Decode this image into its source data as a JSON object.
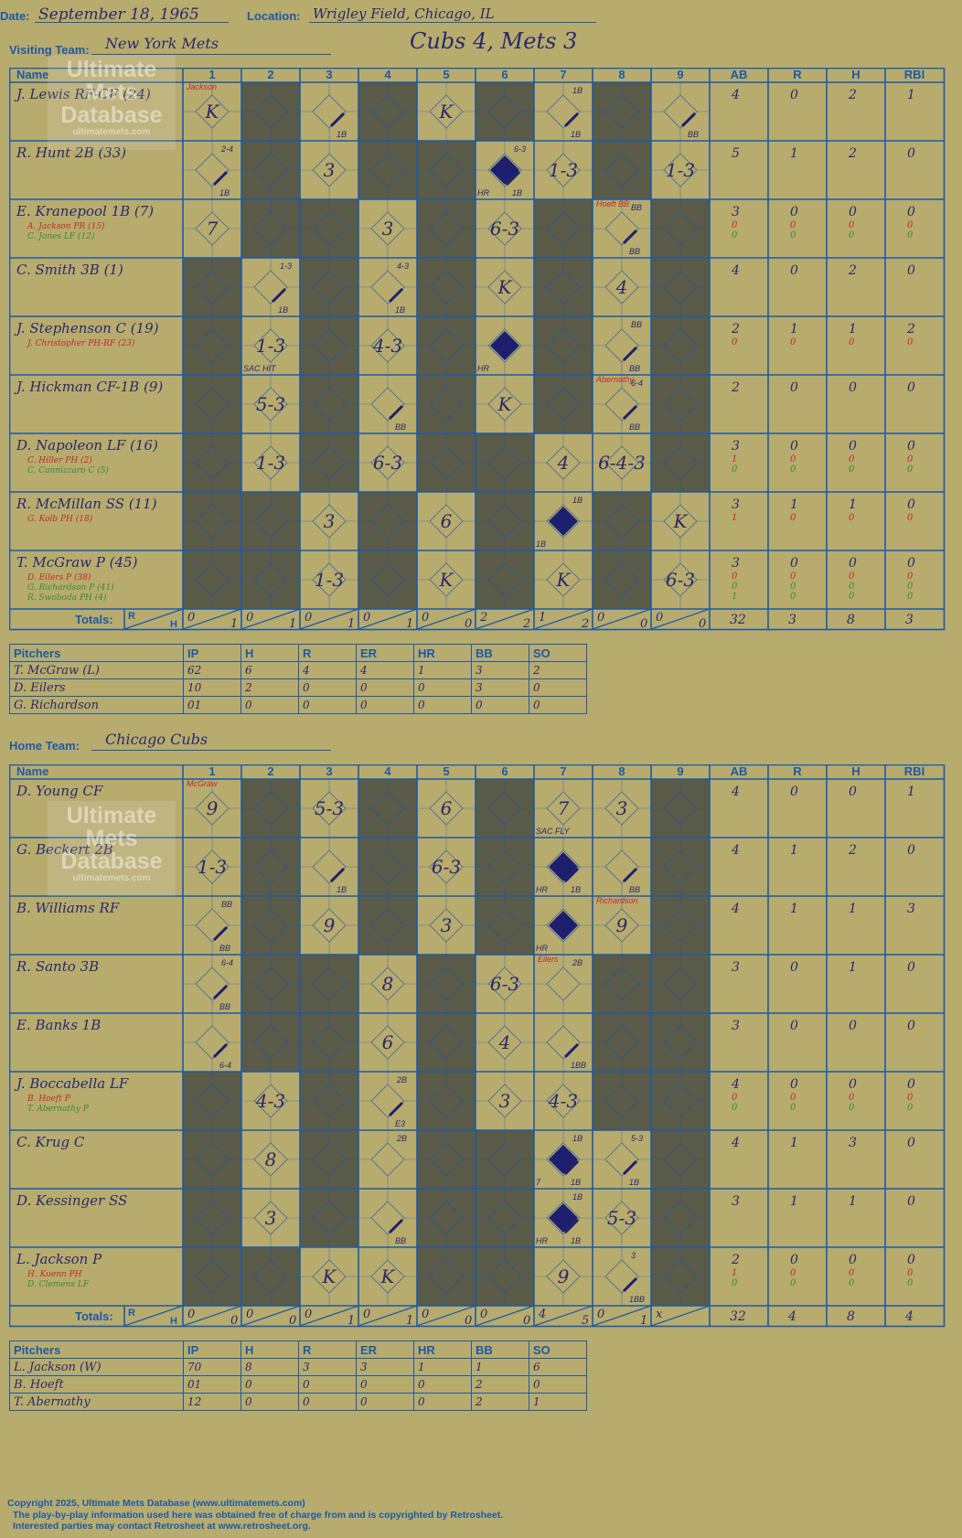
{
  "header": {
    "date_label": "Date:",
    "date": "September 18, 1965",
    "location_label": "Location:",
    "location": "Wrigley Field, Chicago, IL",
    "result": "Cubs 4, Mets 3"
  },
  "columns": {
    "name": "Name",
    "innings": [
      "1",
      "2",
      "3",
      "4",
      "5",
      "6",
      "7",
      "8",
      "9"
    ],
    "stats": [
      "AB",
      "R",
      "H",
      "RBI"
    ],
    "totals_label": "Totals:",
    "r_label": "R",
    "h_label": "H"
  },
  "watermark": {
    "line1": "Ultimate",
    "line2": "Mets",
    "line3": "Database",
    "url": "ultimatemets.com"
  },
  "visitors": {
    "team_label": "Visiting Team:",
    "team": "New York Mets",
    "batters": [
      {
        "name": "J. Lewis RF-CF (24)",
        "subs": [],
        "stats": [
          [
            "4",
            "0",
            "2",
            "1"
          ]
        ],
        "cells": [
          {
            "c": 1,
            "t": "K",
            "note": "Jackson"
          },
          {
            "c": 3,
            "t": "",
            "base": "1B"
          },
          {
            "c": 5,
            "t": "K"
          },
          {
            "c": 7,
            "t": "",
            "base": "1B",
            "top": "1B"
          },
          {
            "c": 9,
            "t": "",
            "base": "BB"
          }
        ]
      },
      {
        "name": "R. Hunt 2B (33)",
        "subs": [],
        "stats": [
          [
            "5",
            "1",
            "2",
            "0"
          ]
        ],
        "cells": [
          {
            "c": 1,
            "t": "",
            "base": "1B",
            "top": "2-4"
          },
          {
            "c": 3,
            "t": "3"
          },
          {
            "c": 6,
            "t": "",
            "run": true,
            "base": "1B",
            "top": "6-3",
            "bl": "HR"
          },
          {
            "c": 7,
            "t": "1-3"
          },
          {
            "c": 9,
            "t": "1-3"
          }
        ]
      },
      {
        "name": "E. Kranepool 1B (7)",
        "subs": [
          "A. Jackson PR (15)",
          "C. Jones LF (12)"
        ],
        "stats": [
          [
            "3",
            "0",
            "0",
            "0"
          ],
          [
            "0",
            "0",
            "0",
            "0"
          ],
          [
            "0",
            "0",
            "0",
            "0"
          ]
        ],
        "cells": [
          {
            "c": 1,
            "t": "7"
          },
          {
            "c": 4,
            "t": "3"
          },
          {
            "c": 6,
            "t": "6-3"
          },
          {
            "c": 8,
            "t": "",
            "base": "BB",
            "top": "BB",
            "note": "Hoeft BB"
          }
        ]
      },
      {
        "name": "C. Smith 3B (1)",
        "subs": [],
        "stats": [
          [
            "4",
            "0",
            "2",
            "0"
          ]
        ],
        "cells": [
          {
            "c": 2,
            "t": "",
            "base": "1B",
            "top": "1-3"
          },
          {
            "c": 4,
            "t": "",
            "base": "1B",
            "top": "4-3"
          },
          {
            "c": 6,
            "t": "K"
          },
          {
            "c": 8,
            "t": "4"
          }
        ]
      },
      {
        "name": "J. Stephenson C (19)",
        "subs": [
          "J. Christopher PH-RF (23)"
        ],
        "stats": [
          [
            "2",
            "1",
            "1",
            "2"
          ],
          [
            "0",
            "0",
            "0",
            "0"
          ]
        ],
        "cells": [
          {
            "c": 2,
            "t": "1-3",
            "bl": "SAC HIT"
          },
          {
            "c": 4,
            "t": "4-3"
          },
          {
            "c": 6,
            "t": "",
            "run": true,
            "bl": "HR"
          },
          {
            "c": 8,
            "t": "",
            "base": "BB",
            "top": "BB"
          }
        ]
      },
      {
        "name": "J. Hickman CF-1B (9)",
        "subs": [],
        "stats": [
          [
            "2",
            "0",
            "0",
            "0"
          ]
        ],
        "cells": [
          {
            "c": 2,
            "t": "5-3"
          },
          {
            "c": 4,
            "t": "",
            "base": "BB"
          },
          {
            "c": 6,
            "t": "K"
          },
          {
            "c": 8,
            "t": "",
            "base": "BB",
            "top": "6-4",
            "note": "Abernathy"
          }
        ]
      },
      {
        "name": "D. Napoleon LF (16)",
        "subs": [
          "C. Hiller PH (2)",
          "C. Cannizzaro C (5)"
        ],
        "stats": [
          [
            "3",
            "0",
            "0",
            "0"
          ],
          [
            "1",
            "0",
            "0",
            "0"
          ],
          [
            "0",
            "0",
            "0",
            "0"
          ]
        ],
        "cells": [
          {
            "c": 2,
            "t": "1-3"
          },
          {
            "c": 4,
            "t": "6-3"
          },
          {
            "c": 7,
            "t": "4"
          },
          {
            "c": 8,
            "t": "6-4-3"
          }
        ]
      },
      {
        "name": "R. McMillan SS (11)",
        "subs": [
          "G. Kolb PH (18)"
        ],
        "stats": [
          [
            "3",
            "1",
            "1",
            "0"
          ],
          [
            "1",
            "0",
            "0",
            "0"
          ]
        ],
        "cells": [
          {
            "c": 3,
            "t": "3"
          },
          {
            "c": 5,
            "t": "6"
          },
          {
            "c": 7,
            "t": "",
            "run": true,
            "top": "1B",
            "bl": "1B"
          },
          {
            "c": 9,
            "t": "K"
          }
        ]
      },
      {
        "name": "T. McGraw P (45)",
        "subs": [
          "D. Eilers P (38)",
          "G. Richardson P (41)",
          "R. Swoboda PH (4)"
        ],
        "stats": [
          [
            "3",
            "0",
            "0",
            "0"
          ],
          [
            "0",
            "0",
            "0",
            "0"
          ],
          [
            "0",
            "0",
            "0",
            "0"
          ],
          [
            "1",
            "0",
            "0",
            "0"
          ]
        ],
        "cells": [
          {
            "c": 3,
            "t": "1-3"
          },
          {
            "c": 5,
            "t": "K"
          },
          {
            "c": 7,
            "t": "K"
          },
          {
            "c": 9,
            "t": "6-3"
          }
        ]
      }
    ],
    "shade": [
      [
        2,
        4,
        6,
        8
      ],
      [
        2,
        4,
        5,
        8
      ],
      [
        2,
        3,
        5,
        7,
        9
      ],
      [
        1,
        3,
        5,
        7,
        9
      ],
      [
        1,
        3,
        5,
        7,
        9
      ],
      [
        1,
        3,
        5,
        7,
        9
      ],
      [
        1,
        3,
        5,
        6,
        9
      ],
      [
        1,
        2,
        4,
        6,
        8
      ],
      [
        1,
        2,
        4,
        6,
        8
      ]
    ],
    "totals_r": [
      "0",
      "0",
      "0",
      "0",
      "0",
      "2",
      "1",
      "0",
      "0"
    ],
    "totals_h": [
      "1",
      "1",
      "1",
      "1",
      "0",
      "2",
      "2",
      "0",
      "0"
    ],
    "totals_stats": [
      "32",
      "3",
      "8",
      "3"
    ],
    "pitchers": {
      "header": [
        "Pitchers",
        "IP",
        "H",
        "R",
        "ER",
        "HR",
        "BB",
        "SO"
      ],
      "rows": [
        [
          "T. McGraw (L)",
          "62",
          "6",
          "4",
          "4",
          "1",
          "3",
          "2"
        ],
        [
          "D. Eilers",
          "10",
          "2",
          "0",
          "0",
          "0",
          "3",
          "0"
        ],
        [
          "G. Richardson",
          "01",
          "0",
          "0",
          "0",
          "0",
          "0",
          "0"
        ]
      ]
    }
  },
  "home": {
    "team_label": "Home Team:",
    "team": "Chicago Cubs",
    "batters": [
      {
        "name": "D. Young CF",
        "subs": [],
        "stats": [
          [
            "4",
            "0",
            "0",
            "1"
          ]
        ],
        "cells": [
          {
            "c": 1,
            "t": "9",
            "note": "McGraw"
          },
          {
            "c": 3,
            "t": "5-3"
          },
          {
            "c": 5,
            "t": "6"
          },
          {
            "c": 7,
            "t": "7",
            "bl": "SAC FLY"
          },
          {
            "c": 8,
            "t": "3"
          }
        ]
      },
      {
        "name": "G. Beckert 2B",
        "subs": [],
        "stats": [
          [
            "4",
            "1",
            "2",
            "0"
          ]
        ],
        "cells": [
          {
            "c": 1,
            "t": "1-3"
          },
          {
            "c": 3,
            "t": "",
            "base": "1B"
          },
          {
            "c": 5,
            "t": "6-3"
          },
          {
            "c": 7,
            "t": "",
            "run": true,
            "base": "1B",
            "bl": "HR"
          },
          {
            "c": 8,
            "t": "",
            "base": "BB"
          }
        ]
      },
      {
        "name": "B. Williams RF",
        "subs": [],
        "stats": [
          [
            "4",
            "1",
            "1",
            "3"
          ]
        ],
        "cells": [
          {
            "c": 1,
            "t": "",
            "base": "BB",
            "top": "BB"
          },
          {
            "c": 3,
            "t": "9"
          },
          {
            "c": 5,
            "t": "3"
          },
          {
            "c": 7,
            "t": "",
            "run": true,
            "bl": "HR"
          },
          {
            "c": 8,
            "t": "9",
            "note": "Richardson"
          }
        ]
      },
      {
        "name": "R. Santo 3B",
        "subs": [],
        "stats": [
          [
            "3",
            "0",
            "1",
            "0"
          ]
        ],
        "cells": [
          {
            "c": 1,
            "t": "",
            "base": "BB",
            "top": "6-4"
          },
          {
            "c": 4,
            "t": "8"
          },
          {
            "c": 6,
            "t": "6-3"
          },
          {
            "c": 7,
            "t": "",
            "top": "2B",
            "note": "Eilers"
          }
        ]
      },
      {
        "name": "E. Banks 1B",
        "subs": [],
        "stats": [
          [
            "3",
            "0",
            "0",
            "0"
          ]
        ],
        "cells": [
          {
            "c": 1,
            "t": "",
            "base": "6-4"
          },
          {
            "c": 4,
            "t": "6"
          },
          {
            "c": 6,
            "t": "4"
          },
          {
            "c": 7,
            "t": "",
            "base": "1BB"
          }
        ]
      },
      {
        "name": "J. Boccabella LF",
        "subs": [
          "B. Hoeft P",
          "T. Abernathy P"
        ],
        "stats": [
          [
            "4",
            "0",
            "0",
            "0"
          ],
          [
            "0",
            "0",
            "0",
            "0"
          ],
          [
            "0",
            "0",
            "0",
            "0"
          ]
        ],
        "cells": [
          {
            "c": 2,
            "t": "4-3"
          },
          {
            "c": 4,
            "t": "",
            "base": "E3",
            "top": "2B"
          },
          {
            "c": 6,
            "t": "3"
          },
          {
            "c": 7,
            "t": "4-3"
          }
        ]
      },
      {
        "name": "C. Krug C",
        "subs": [],
        "stats": [
          [
            "4",
            "1",
            "3",
            "0"
          ]
        ],
        "cells": [
          {
            "c": 2,
            "t": "8"
          },
          {
            "c": 4,
            "t": "",
            "top": "2B"
          },
          {
            "c": 7,
            "t": "",
            "run": true,
            "base": "1B",
            "top": "1B",
            "bl": "7"
          },
          {
            "c": 8,
            "t": "",
            "base": "1B",
            "top": "5-3"
          }
        ]
      },
      {
        "name": "D. Kessinger SS",
        "subs": [],
        "stats": [
          [
            "3",
            "1",
            "1",
            "0"
          ]
        ],
        "cells": [
          {
            "c": 2,
            "t": "3"
          },
          {
            "c": 4,
            "t": "",
            "base": "BB"
          },
          {
            "c": 7,
            "t": "",
            "run": true,
            "base": "1B",
            "top": "1B",
            "bl": "HR"
          },
          {
            "c": 8,
            "t": "5-3"
          }
        ]
      },
      {
        "name": "L. Jackson P",
        "subs": [
          "H. Kuenn PH",
          "D. Clemens LF"
        ],
        "stats": [
          [
            "2",
            "0",
            "0",
            "0"
          ],
          [
            "1",
            "0",
            "0",
            "0"
          ],
          [
            "0",
            "0",
            "0",
            "0"
          ]
        ],
        "cells": [
          {
            "c": 3,
            "t": "K"
          },
          {
            "c": 4,
            "t": "K"
          },
          {
            "c": 7,
            "t": "9"
          },
          {
            "c": 8,
            "t": "",
            "base": "1BB",
            "top": "3"
          }
        ]
      }
    ],
    "shade": [
      [
        2,
        4,
        6,
        9
      ],
      [
        2,
        4,
        6,
        9
      ],
      [
        2,
        4,
        6,
        9
      ],
      [
        2,
        3,
        5,
        8,
        9
      ],
      [
        2,
        3,
        5,
        8,
        9
      ],
      [
        1,
        3,
        5,
        8,
        9
      ],
      [
        1,
        3,
        5,
        6,
        9
      ],
      [
        1,
        3,
        5,
        6,
        9
      ],
      [
        1,
        2,
        5,
        6,
        9
      ]
    ],
    "totals_r": [
      "0",
      "0",
      "0",
      "0",
      "0",
      "0",
      "4",
      "0",
      "x"
    ],
    "totals_h": [
      "0",
      "0",
      "1",
      "1",
      "0",
      "0",
      "5",
      "1",
      ""
    ],
    "totals_stats": [
      "32",
      "4",
      "8",
      "4"
    ],
    "pitchers": {
      "header": [
        "Pitchers",
        "IP",
        "H",
        "R",
        "ER",
        "HR",
        "BB",
        "SO"
      ],
      "rows": [
        [
          "L. Jackson (W)",
          "70",
          "8",
          "3",
          "3",
          "1",
          "1",
          "6"
        ],
        [
          "B. Hoeft",
          "01",
          "0",
          "0",
          "0",
          "0",
          "2",
          "0"
        ],
        [
          "T. Abernathy",
          "12",
          "0",
          "0",
          "0",
          "0",
          "2",
          "1"
        ]
      ]
    }
  },
  "footer": {
    "line1": "Copyright 2025, Ultimate Mets Database (www.ultimatemets.com)",
    "line2": "The play-by-play information used here was obtained free of charge from and is copyrighted by Retrosheet.",
    "line3": "Interested parties may contact Retrosheet at www.retrosheet.org."
  },
  "colors": {
    "grid": "#1c5aa8",
    "shade": "#5a5a48",
    "ink": "#2a2a6a",
    "red": "#c42a2a",
    "green": "#3a8a3a",
    "diamond": "#1e1e6e",
    "paper": "#b7ab6e"
  }
}
